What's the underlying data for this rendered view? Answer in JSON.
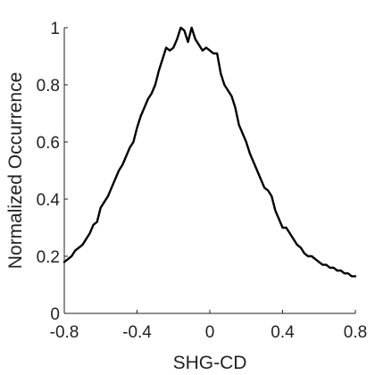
{
  "chart_data": {
    "type": "line",
    "title": "",
    "xlabel": "SHG-CD",
    "ylabel": "Normalized Occurrence",
    "xlim": [
      -0.8,
      0.8
    ],
    "ylim": [
      0,
      1
    ],
    "xticks": [
      -0.8,
      -0.4,
      0,
      0.4,
      0.8
    ],
    "xtick_labels": [
      "-0.8",
      "-0.4",
      "0",
      "0.4",
      "0.8"
    ],
    "yticks": [
      0,
      0.2,
      0.4,
      0.6,
      0.8,
      1
    ],
    "ytick_labels": [
      "0",
      "0.2",
      "0.4",
      "0.6",
      "0.8",
      "1"
    ],
    "grid": false,
    "box": "top-right-open",
    "colors": {
      "line": "#000000",
      "axis": "#222222"
    },
    "series": [
      {
        "x": [
          -0.8,
          -0.78,
          -0.76,
          -0.74,
          -0.72,
          -0.7,
          -0.68,
          -0.66,
          -0.64,
          -0.62,
          -0.6,
          -0.58,
          -0.56,
          -0.54,
          -0.52,
          -0.5,
          -0.48,
          -0.46,
          -0.44,
          -0.42,
          -0.4,
          -0.38,
          -0.36,
          -0.34,
          -0.32,
          -0.3,
          -0.28,
          -0.26,
          -0.24,
          -0.22,
          -0.2,
          -0.18,
          -0.16,
          -0.14,
          -0.12,
          -0.1,
          -0.08,
          -0.06,
          -0.04,
          -0.02,
          0,
          0.02,
          0.04,
          0.06,
          0.08,
          0.1,
          0.12,
          0.14,
          0.16,
          0.18,
          0.2,
          0.22,
          0.24,
          0.26,
          0.28,
          0.3,
          0.32,
          0.34,
          0.36,
          0.38,
          0.4,
          0.42,
          0.44,
          0.46,
          0.48,
          0.5,
          0.52,
          0.54,
          0.56,
          0.58,
          0.6,
          0.62,
          0.64,
          0.66,
          0.68,
          0.7,
          0.72,
          0.74,
          0.76,
          0.78,
          0.8
        ],
        "values": [
          0.18,
          0.19,
          0.2,
          0.22,
          0.23,
          0.24,
          0.26,
          0.28,
          0.31,
          0.32,
          0.37,
          0.39,
          0.41,
          0.44,
          0.47,
          0.5,
          0.52,
          0.55,
          0.58,
          0.6,
          0.65,
          0.69,
          0.72,
          0.75,
          0.77,
          0.8,
          0.85,
          0.89,
          0.93,
          0.92,
          0.93,
          0.96,
          1.0,
          0.99,
          0.95,
          1.0,
          0.96,
          0.94,
          0.92,
          0.93,
          0.92,
          0.91,
          0.91,
          0.84,
          0.8,
          0.78,
          0.76,
          0.72,
          0.66,
          0.63,
          0.6,
          0.56,
          0.53,
          0.5,
          0.47,
          0.44,
          0.43,
          0.41,
          0.36,
          0.33,
          0.3,
          0.3,
          0.28,
          0.26,
          0.24,
          0.23,
          0.21,
          0.2,
          0.2,
          0.19,
          0.18,
          0.17,
          0.17,
          0.16,
          0.16,
          0.15,
          0.15,
          0.14,
          0.14,
          0.13,
          0.13
        ]
      }
    ]
  }
}
